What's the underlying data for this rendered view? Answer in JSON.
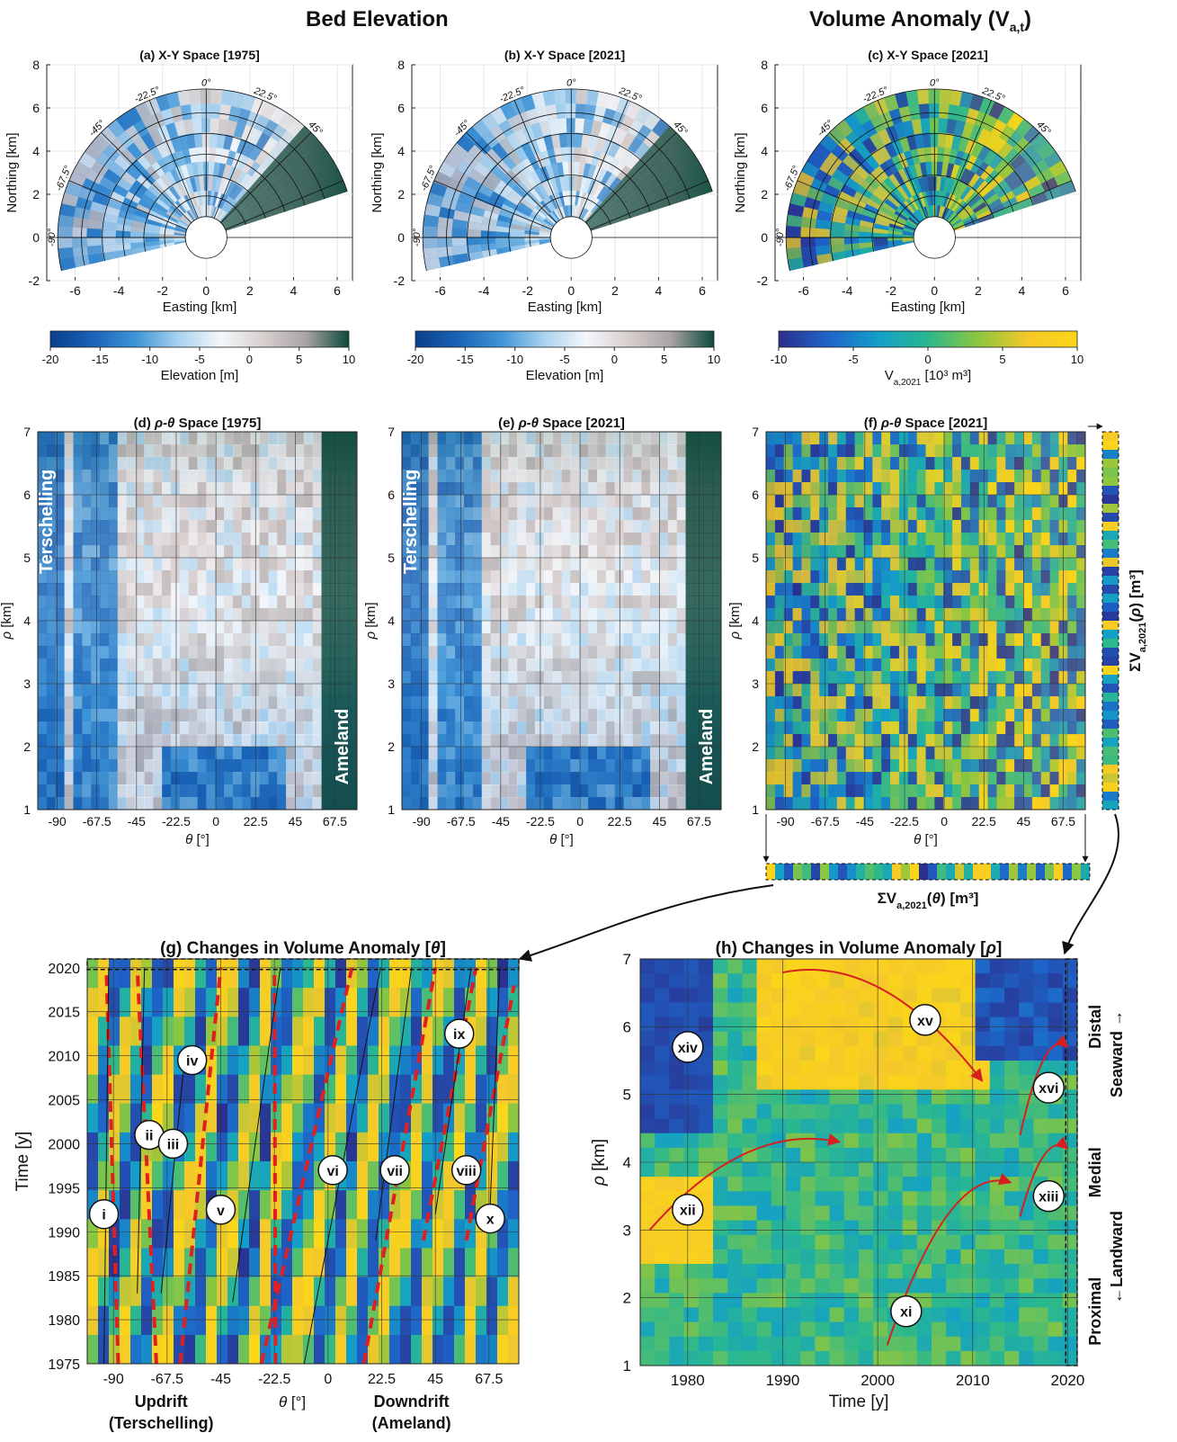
{
  "headers": {
    "bed_elevation": "Bed Elevation",
    "volume_anomaly": "Volume Anomaly (V",
    "volume_anomaly_sub": "a,t",
    "volume_anomaly_close": ")"
  },
  "colors": {
    "elevation_stops": [
      "#0a3f8a",
      "#1a63b8",
      "#3f94d6",
      "#a8d2ef",
      "#f4f7fb",
      "#d8cfcf",
      "#a9a3a3",
      "#0b4a3c"
    ],
    "anomaly_stops": [
      "#2b2e8c",
      "#1e64c8",
      "#139fc8",
      "#2bb88e",
      "#8bc640",
      "#f5c82a",
      "#fbd717"
    ],
    "dashed_red": "#e02020",
    "arrow_red": "#d62020"
  },
  "chart_data": [
    {
      "id": "a",
      "type": "heatmap",
      "title": "(a) X-Y Space [1975]",
      "xlabel": "Easting [km]",
      "ylabel": "Northing [km]",
      "xticks": [
        "-6",
        "-4",
        "-2",
        "0",
        "2",
        "4",
        "6"
      ],
      "yticks": [
        "-2",
        "0",
        "2",
        "4",
        "6",
        "8"
      ],
      "xlim": [
        -7.3,
        6.7
      ],
      "ylim": [
        -2,
        8
      ],
      "angle_labels": [
        "-90°",
        "-67.5°",
        "-45°",
        "-22.5°",
        "0°",
        "22.5°",
        "45°"
      ],
      "colorbar": {
        "label": "Elevation [m]",
        "ticks": [
          "-20",
          "-15",
          "-10",
          "-5",
          "0",
          "5",
          "10"
        ],
        "range": [
          -20,
          10
        ]
      }
    },
    {
      "id": "b",
      "type": "heatmap",
      "title": "(b) X-Y Space [2021]",
      "xlabel": "Easting [km]",
      "ylabel": "Northing [km]",
      "xticks": [
        "-6",
        "-4",
        "-2",
        "0",
        "2",
        "4",
        "6"
      ],
      "yticks": [
        "-2",
        "0",
        "2",
        "4",
        "6",
        "8"
      ],
      "xlim": [
        -7.3,
        6.7
      ],
      "ylim": [
        -2,
        8
      ],
      "angle_labels": [
        "-90°",
        "-67.5°",
        "-45°",
        "-22.5°",
        "0°",
        "22.5°",
        "45°"
      ],
      "colorbar": {
        "label": "Elevation [m]",
        "ticks": [
          "-20",
          "-15",
          "-10",
          "-5",
          "0",
          "5",
          "10"
        ],
        "range": [
          -20,
          10
        ]
      }
    },
    {
      "id": "c",
      "type": "heatmap",
      "title": "(c) X-Y Space [2021]",
      "xlabel": "Easting [km]",
      "ylabel": "Northing [km]",
      "xticks": [
        "-6",
        "-4",
        "-2",
        "0",
        "2",
        "4",
        "6"
      ],
      "yticks": [
        "-2",
        "0",
        "2",
        "4",
        "6",
        "8"
      ],
      "xlim": [
        -7.3,
        6.7
      ],
      "ylim": [
        -2,
        8
      ],
      "angle_labels": [
        "-90°",
        "-67.5°",
        "-45°",
        "-22.5°",
        "0°",
        "22.5°",
        "45°"
      ],
      "colorbar": {
        "label": "V",
        "label_sub": "a,2021",
        "label_tail": " [10³ m³]",
        "ticks": [
          "-10",
          "-5",
          "0",
          "5",
          "10"
        ],
        "range": [
          -10,
          10
        ]
      }
    },
    {
      "id": "d",
      "type": "heatmap",
      "title_prefix": "(d) ",
      "title_greek": "ρ-θ",
      "title_suffix": " Space [1975]",
      "xlabel_greek": "θ",
      "xlabel_unit": " [°]",
      "ylabel_greek": "ρ",
      "ylabel_unit": " [km]",
      "xticks": [
        "-90",
        "-67.5",
        "-45",
        "-22.5",
        "0",
        "22.5",
        "45",
        "67.5"
      ],
      "xvalues": [
        -90,
        -67.5,
        -45,
        -22.5,
        0,
        22.5,
        45,
        67.5
      ],
      "xlim": [
        -101,
        80
      ],
      "yticks": [
        "1",
        "2",
        "3",
        "4",
        "5",
        "6",
        "7"
      ],
      "ylim": [
        1,
        7
      ],
      "annotations": [
        "Terschelling",
        "Ameland"
      ]
    },
    {
      "id": "e",
      "type": "heatmap",
      "title_prefix": "(e) ",
      "title_greek": "ρ-θ",
      "title_suffix": " Space [2021]",
      "xlabel_greek": "θ",
      "xlabel_unit": " [°]",
      "ylabel_greek": "ρ",
      "ylabel_unit": " [km]",
      "xticks": [
        "-90",
        "-67.5",
        "-45",
        "-22.5",
        "0",
        "22.5",
        "45",
        "67.5"
      ],
      "xvalues": [
        -90,
        -67.5,
        -45,
        -22.5,
        0,
        22.5,
        45,
        67.5
      ],
      "xlim": [
        -101,
        80
      ],
      "yticks": [
        "1",
        "2",
        "3",
        "4",
        "5",
        "6",
        "7"
      ],
      "ylim": [
        1,
        7
      ],
      "annotations": [
        "Terschelling",
        "Ameland"
      ]
    },
    {
      "id": "f",
      "type": "heatmap",
      "title_prefix": "(f) ",
      "title_greek": "ρ-θ",
      "title_suffix": " Space [2021]",
      "xlabel_greek": "θ",
      "xlabel_unit": " [°]",
      "ylabel_greek": "ρ",
      "ylabel_unit": " [km]",
      "xticks": [
        "-90",
        "-67.5",
        "-45",
        "-22.5",
        "0",
        "22.5",
        "45",
        "67.5"
      ],
      "xvalues": [
        -90,
        -67.5,
        -45,
        -22.5,
        0,
        22.5,
        45,
        67.5
      ],
      "xlim": [
        -101,
        80
      ],
      "yticks": [
        "1",
        "2",
        "3",
        "4",
        "5",
        "6",
        "7"
      ],
      "ylim": [
        1,
        7
      ],
      "side_label": {
        "sigma": "ΣV",
        "sub": "a,2021",
        "greek": "ρ",
        "unit": " [m³]"
      },
      "bottom_label": {
        "sigma": "ΣV",
        "sub": "a,2021",
        "greek": "θ",
        "unit": " [m³]"
      }
    },
    {
      "id": "g",
      "type": "heatmap",
      "title_main": "(g) Changes in Volume Anomaly [",
      "title_greek": "θ",
      "title_end": "]",
      "xlabel_greek": "θ",
      "xlabel_unit": " [°]",
      "ylabel": "Time [y]",
      "xticks": [
        "-90",
        "-67.5",
        "-45",
        "-22.5",
        "0",
        "22.5",
        "45",
        "67.5"
      ],
      "xvalues": [
        -90,
        -67.5,
        -45,
        -22.5,
        0,
        22.5,
        45,
        67.5
      ],
      "xlim": [
        -101,
        80
      ],
      "yticks": [
        "1975",
        "1980",
        "1985",
        "1990",
        "1995",
        "2000",
        "2005",
        "2010",
        "2015",
        "2020"
      ],
      "yvalues": [
        1975,
        1980,
        1985,
        1990,
        1995,
        2000,
        2005,
        2010,
        2015,
        2020
      ],
      "ylim": [
        1975,
        2021
      ],
      "annotations": [
        {
          "label": "i",
          "theta": -94,
          "year": 1992
        },
        {
          "label": "ii",
          "theta": -75,
          "year": 2001
        },
        {
          "label": "iii",
          "theta": -65,
          "year": 2000
        },
        {
          "label": "iv",
          "theta": -57,
          "year": 2009.5
        },
        {
          "label": "v",
          "theta": -45,
          "year": 1992.5
        },
        {
          "label": "vi",
          "theta": 2,
          "year": 1997
        },
        {
          "label": "vii",
          "theta": 28,
          "year": 1997
        },
        {
          "label": "viii",
          "theta": 58,
          "year": 1997
        },
        {
          "label": "ix",
          "theta": 55,
          "year": 2012.5
        },
        {
          "label": "x",
          "theta": 68,
          "year": 1991.5
        }
      ],
      "bottom_labels": [
        "Updrift",
        "(Terschelling)",
        "Downdrift",
        "(Ameland)"
      ]
    },
    {
      "id": "h",
      "type": "heatmap",
      "title_main": "(h) Changes in Volume Anomaly [",
      "title_greek": "ρ",
      "title_end": "]",
      "xlabel": "Time [y]",
      "ylabel_greek": "ρ",
      "ylabel_unit": " [km]",
      "xticks": [
        "1980",
        "1990",
        "2000",
        "2010",
        "2020"
      ],
      "xvalues": [
        1980,
        1990,
        2000,
        2010,
        2020
      ],
      "xlim": [
        1975,
        2021
      ],
      "yticks": [
        "1",
        "2",
        "3",
        "4",
        "5",
        "6",
        "7"
      ],
      "ylim": [
        1,
        7
      ],
      "annotations": [
        {
          "label": "xi",
          "year": 2003,
          "rho": 1.8
        },
        {
          "label": "xii",
          "year": 1980,
          "rho": 3.3
        },
        {
          "label": "xiii",
          "year": 2018,
          "rho": 3.5
        },
        {
          "label": "xiv",
          "year": 1980,
          "rho": 5.7
        },
        {
          "label": "xv",
          "year": 2005,
          "rho": 6.1
        },
        {
          "label": "xvi",
          "year": 2018,
          "rho": 5.1
        }
      ],
      "side_labels": {
        "distal": "Distal",
        "medial": "Medial",
        "proximal": "Proximal",
        "seaward": "Seaward →",
        "landward": "←Landward"
      }
    }
  ]
}
